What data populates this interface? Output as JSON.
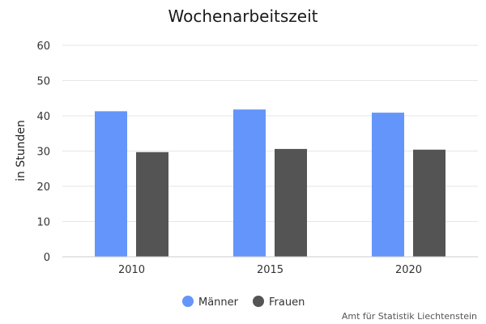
{
  "chart_data": {
    "type": "bar",
    "title": "Wochenarbeitszeit",
    "xlabel": "",
    "ylabel": "in Stunden",
    "categories": [
      "2010",
      "2015",
      "2020"
    ],
    "series": [
      {
        "name": "Männer",
        "values": [
          41.3,
          41.8,
          40.9
        ],
        "color": "#6495fa"
      },
      {
        "name": "Frauen",
        "values": [
          29.7,
          30.6,
          30.4
        ],
        "color": "#545454"
      }
    ],
    "ylim": [
      0,
      60
    ],
    "yticks": [
      0,
      10,
      20,
      30,
      40,
      50,
      60
    ],
    "grid": true,
    "legend_position": "bottom-center"
  },
  "credit": "Amt für Statistik Liechtenstein"
}
